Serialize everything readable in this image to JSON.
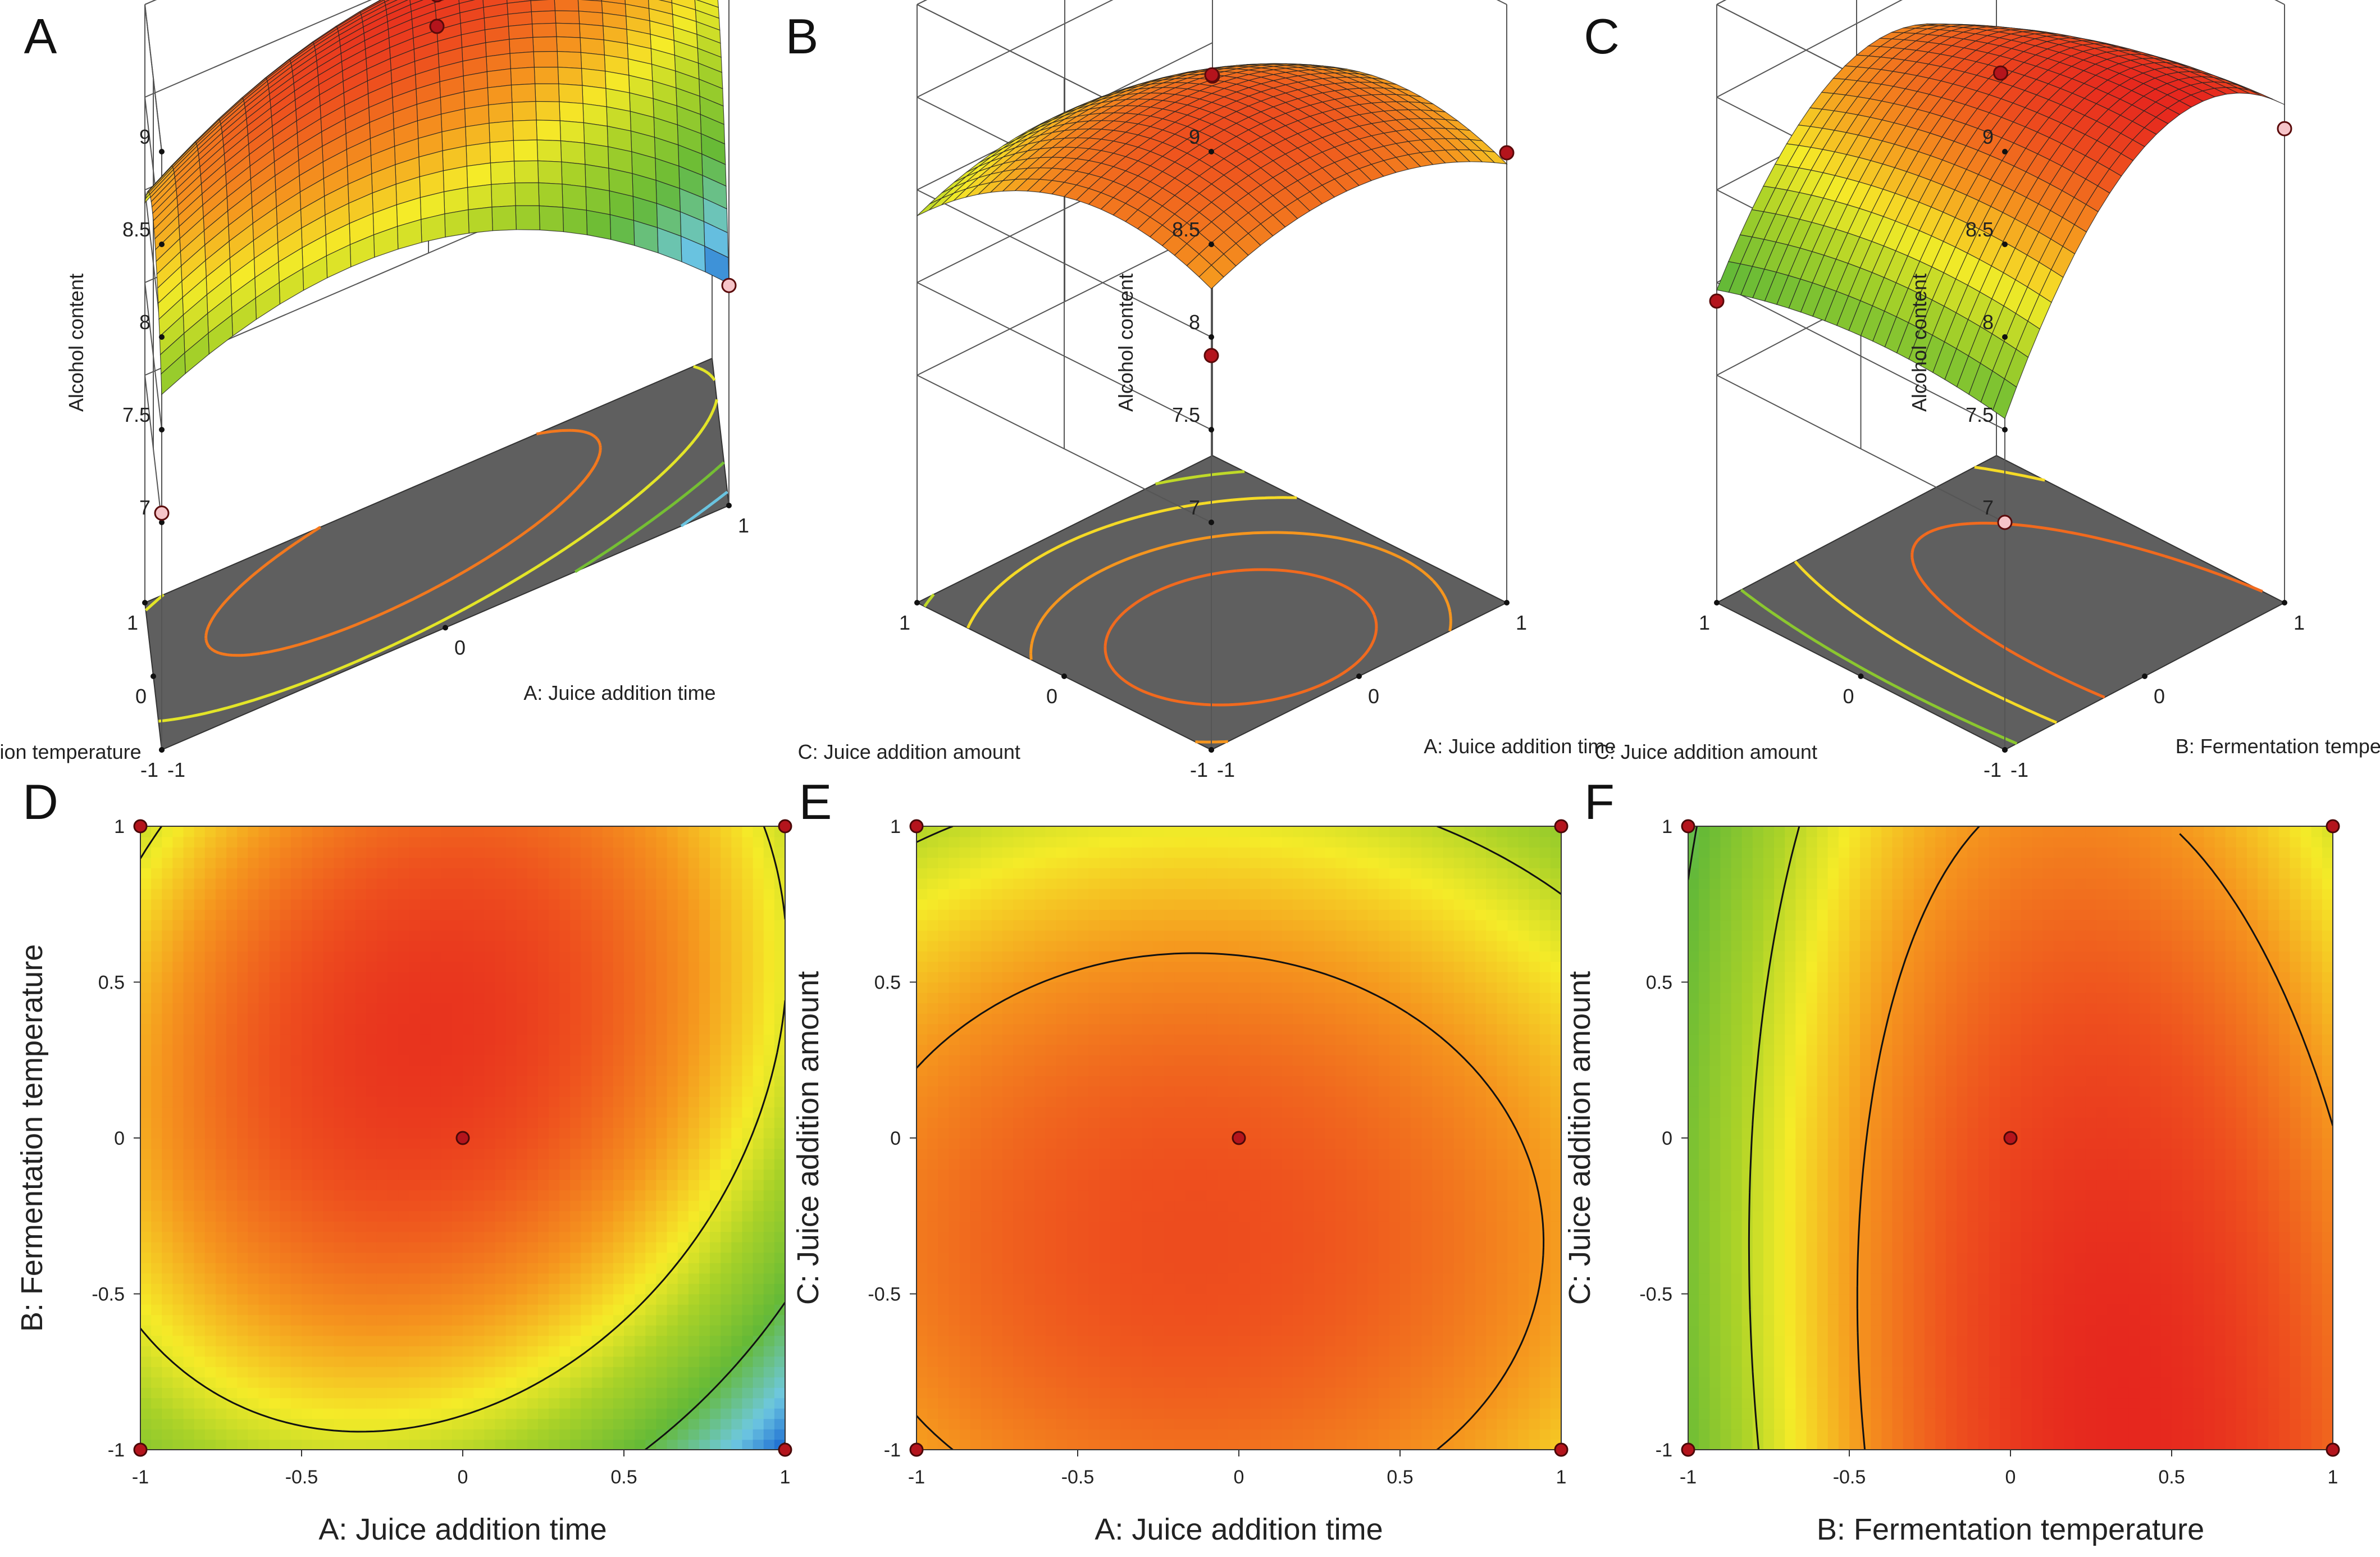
{
  "figure": {
    "panels": [
      "A",
      "B",
      "C",
      "D",
      "E",
      "F"
    ]
  },
  "colors": {
    "low": "#2a7fd4",
    "mid_low": "#6fbf3f",
    "mid": "#f3ea2a",
    "high": "#e41f1f",
    "floor": "#5f5f5f"
  },
  "chart_data": [
    {
      "panel": "A",
      "type": "surface3d",
      "xlabel": "A: Juice addition time",
      "ylabel": "B: Fermentation temperature",
      "zlabel": "Alcohol content",
      "xlim": [
        -1,
        1
      ],
      "ylim": [
        -1,
        1
      ],
      "zlim": [
        7,
        9
      ],
      "xticks": [
        "-1",
        "0",
        "1"
      ],
      "yticks": [
        "-1",
        "0",
        "1"
      ],
      "zticks": [
        "7",
        "7.5",
        "8",
        "8.5",
        "9"
      ],
      "points": [
        {
          "x": 1,
          "y": 1,
          "z": 8.0,
          "above": true
        },
        {
          "x": -1,
          "y": -1,
          "z": 7.05,
          "above": false
        },
        {
          "x": 1,
          "y": -1,
          "z": 6.96,
          "above": false
        },
        {
          "x": 0,
          "y": 0,
          "z": 8.62,
          "above": true
        },
        {
          "x": 0,
          "y": 0,
          "z": 8.79,
          "above": true
        }
      ]
    },
    {
      "panel": "B",
      "type": "surface3d",
      "xlabel": "A: Juice addition time",
      "ylabel": "C: Juice addition amount",
      "zlabel": "Alcohol content",
      "xlim": [
        -1,
        1
      ],
      "ylim": [
        -1,
        1
      ],
      "zlim": [
        7,
        9
      ],
      "xticks": [
        "-1",
        "0",
        "1"
      ],
      "yticks": [
        "-1",
        "0",
        "1"
      ],
      "zticks": [
        "7",
        "7.5",
        "8",
        "8.5",
        "9"
      ],
      "points": [
        {
          "x": 1,
          "y": 1,
          "z": 7.82,
          "above": false
        },
        {
          "x": 1,
          "y": -1,
          "z": 8.2,
          "above": true
        },
        {
          "x": -1,
          "y": -1,
          "z": 7.9,
          "above": true
        },
        {
          "x": 0,
          "y": 0,
          "z": 8.62,
          "above": true
        }
      ]
    },
    {
      "panel": "C",
      "type": "surface3d",
      "xlabel": "B: Fermentation temperature",
      "ylabel": "C: Juice addition amount",
      "zlabel": "Alcohol content",
      "xlim": [
        -1,
        1
      ],
      "ylim": [
        -1,
        1
      ],
      "zlim": [
        7,
        9
      ],
      "xticks": [
        "-1",
        "0",
        "1"
      ],
      "yticks": [
        "-1",
        "0",
        "1"
      ],
      "zticks": [
        "7",
        "7.5",
        "8",
        "8.5",
        "9"
      ],
      "points": [
        {
          "x": -1,
          "y": 1,
          "z": 7.4,
          "above": true
        },
        {
          "x": 1,
          "y": -1,
          "z": 8.33,
          "above": false
        },
        {
          "x": 0,
          "y": 0,
          "z": 8.63,
          "above": true
        },
        {
          "x": -1,
          "y": -1,
          "z": 7.0,
          "above": false
        }
      ]
    },
    {
      "panel": "D",
      "type": "contour",
      "xlabel": "A: Juice addition time",
      "ylabel": "B: Fermentation temperature",
      "xlim": [
        -1,
        1
      ],
      "ylim": [
        -1,
        1
      ],
      "xticks": [
        "-1",
        "-0.5",
        "0",
        "0.5",
        "1"
      ],
      "yticks": [
        "-1",
        "-0.5",
        "0",
        "0.5",
        "1"
      ],
      "contour_levels": [
        7.0,
        7.5,
        8.0
      ],
      "points": [
        {
          "x": -1,
          "y": 1
        },
        {
          "x": 1,
          "y": 1
        },
        {
          "x": -1,
          "y": -1
        },
        {
          "x": 1,
          "y": -1
        },
        {
          "x": 0,
          "y": 0
        }
      ]
    },
    {
      "panel": "E",
      "type": "contour",
      "xlabel": "A: Juice addition time",
      "ylabel": "C: Juice addition amount",
      "xlim": [
        -1,
        1
      ],
      "ylim": [
        -1,
        1
      ],
      "xticks": [
        "-1",
        "-0.5",
        "0",
        "0.5",
        "1"
      ],
      "yticks": [
        "-1",
        "-0.5",
        "0",
        "0.5",
        "1"
      ],
      "contour_levels": [
        7.9,
        8.3
      ],
      "points": [
        {
          "x": -1,
          "y": 1
        },
        {
          "x": 1,
          "y": 1
        },
        {
          "x": -1,
          "y": -1
        },
        {
          "x": 1,
          "y": -1
        },
        {
          "x": 0,
          "y": 0
        }
      ]
    },
    {
      "panel": "F",
      "type": "contour",
      "xlabel": "B: Fermentation temperature",
      "ylabel": "C: Juice addition amount",
      "xlim": [
        -1,
        1
      ],
      "ylim": [
        -1,
        1
      ],
      "xticks": [
        "-1",
        "-0.5",
        "0",
        "0.5",
        "1"
      ],
      "yticks": [
        "-1",
        "-0.5",
        "0",
        "0.5",
        "1"
      ],
      "contour_levels": [
        7.5,
        7.9,
        8.3
      ],
      "points": [
        {
          "x": -1,
          "y": 1
        },
        {
          "x": 1,
          "y": 1
        },
        {
          "x": -1,
          "y": -1
        },
        {
          "x": 1,
          "y": -1
        },
        {
          "x": 0,
          "y": 0
        }
      ]
    }
  ]
}
